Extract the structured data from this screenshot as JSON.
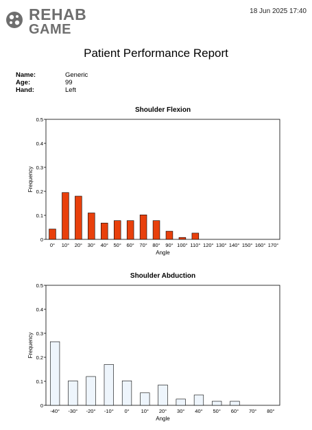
{
  "header": {
    "logo_line1": "REHAB",
    "logo_line2": "GAME",
    "datetime": "18 Jun 2025  17:40"
  },
  "report": {
    "title": "Patient Performance Report"
  },
  "patient": [
    {
      "label": "Name:",
      "value": "Generic"
    },
    {
      "label": "Age:",
      "value": "99"
    },
    {
      "label": "Hand:",
      "value": "Left"
    }
  ],
  "chart_data": [
    {
      "type": "bar",
      "title": "Shoulder Flexion",
      "xlabel": "Angle",
      "ylabel": "Frequency",
      "ylim": [
        0,
        0.5
      ],
      "yticks": [
        "0",
        "0.1",
        "0.2",
        "0.3",
        "0.4",
        "0.5"
      ],
      "categories": [
        "0°",
        "10°",
        "20°",
        "30°",
        "40°",
        "50°",
        "60°",
        "70°",
        "80°",
        "90°",
        "100°",
        "110°",
        "120°",
        "130°",
        "140°",
        "150°",
        "160°",
        "170°"
      ],
      "values": [
        0.043,
        0.195,
        0.18,
        0.11,
        0.068,
        0.078,
        0.078,
        0.102,
        0.078,
        0.034,
        0.008,
        0.026,
        0,
        0,
        0,
        0,
        0,
        0
      ],
      "bar_color": "#e8400c",
      "bar_stroke": "#000000",
      "grid": false
    },
    {
      "type": "bar",
      "title": "Shoulder Abduction",
      "xlabel": "Angle",
      "ylabel": "Frequency",
      "ylim": [
        0,
        0.5
      ],
      "yticks": [
        "0",
        "0.1",
        "0.2",
        "0.3",
        "0.4",
        "0.5"
      ],
      "categories": [
        "-40°",
        "-30°",
        "-20°",
        "-10°",
        "0°",
        "10°",
        "20°",
        "30°",
        "40°",
        "50°",
        "60°",
        "70°",
        "80°"
      ],
      "values": [
        0.265,
        0.102,
        0.12,
        0.17,
        0.102,
        0.052,
        0.085,
        0.026,
        0.043,
        0.017,
        0.017,
        0,
        0
      ],
      "bar_color": "#eef5fc",
      "bar_stroke": "#000000",
      "grid": false
    }
  ]
}
